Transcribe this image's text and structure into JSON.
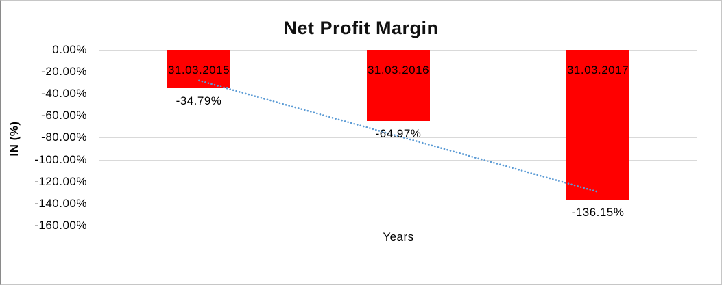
{
  "chart_data": {
    "type": "bar",
    "title": "Net Profit Margin",
    "xlabel": "Years",
    "ylabel": "IN (%)",
    "categories": [
      "31.03.2015",
      "31.03.2016",
      "31.03.2017"
    ],
    "values": [
      -34.79,
      -64.97,
      -136.15
    ],
    "value_labels": [
      "-34.79%",
      "-64.97%",
      "-136.15%"
    ],
    "ytick_labels": [
      "0.00%",
      "-20.00%",
      "-40.00%",
      "-60.00%",
      "-80.00%",
      "-100.00%",
      "-120.00%",
      "-140.00%",
      "-160.00%"
    ],
    "ylim": [
      -160,
      0
    ],
    "grid": true,
    "legend": false,
    "bar_color": "#ff0000",
    "gridline_color": "#d9d9d9",
    "trendline": {
      "type": "linear",
      "style": "dotted",
      "color": "#5b9bd5"
    }
  }
}
